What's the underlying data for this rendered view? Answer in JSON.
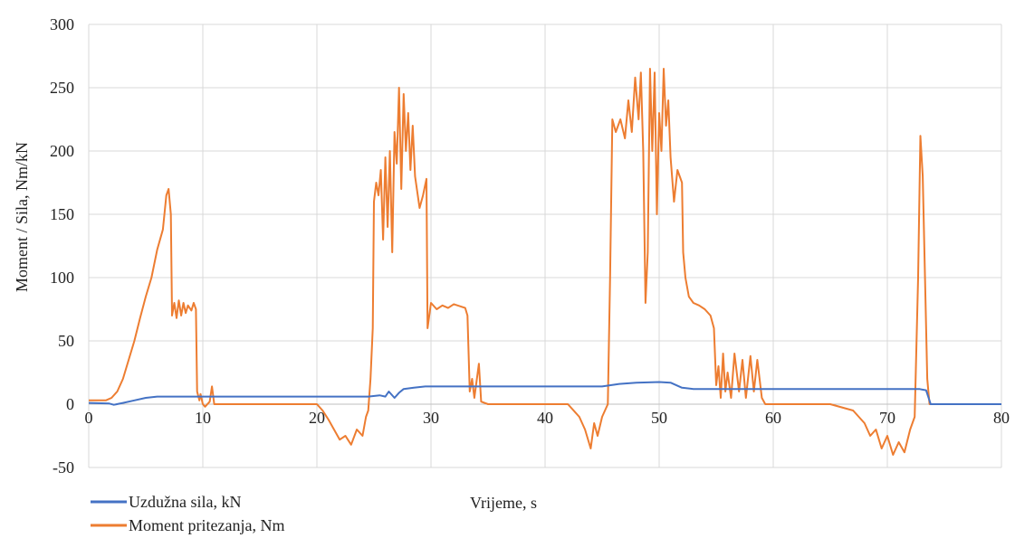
{
  "chart_data": {
    "type": "line",
    "xlabel": "Vrijeme, s",
    "ylabel": "Moment / Sila,  Nm/kN",
    "xlim": [
      0,
      80
    ],
    "ylim": [
      -50,
      300
    ],
    "x_ticks": [
      "0",
      "10",
      "20",
      "30",
      "40",
      "50",
      "60",
      "70",
      "80"
    ],
    "y_ticks": [
      "-50",
      "0",
      "50",
      "100",
      "150",
      "200",
      "250",
      "300"
    ],
    "grid": true,
    "legend_position": "bottom-left",
    "series": [
      {
        "name": "Uzdužna sila,  kN",
        "color": "#4472C4",
        "points": [
          [
            0,
            1
          ],
          [
            1.8,
            0.5
          ],
          [
            2.2,
            -0.5
          ],
          [
            3,
            1
          ],
          [
            4,
            3
          ],
          [
            5,
            5
          ],
          [
            6,
            6
          ],
          [
            8,
            6
          ],
          [
            10,
            6
          ],
          [
            15,
            6
          ],
          [
            20,
            6
          ],
          [
            24.5,
            6
          ],
          [
            25.5,
            7
          ],
          [
            26,
            6
          ],
          [
            26.3,
            10
          ],
          [
            26.8,
            5
          ],
          [
            27.2,
            9
          ],
          [
            27.6,
            12
          ],
          [
            28.5,
            13
          ],
          [
            29.5,
            14
          ],
          [
            31,
            14
          ],
          [
            35,
            14
          ],
          [
            40,
            14
          ],
          [
            45,
            14
          ],
          [
            46.5,
            16
          ],
          [
            48,
            17
          ],
          [
            50,
            17.5
          ],
          [
            51,
            17
          ],
          [
            52,
            13
          ],
          [
            53,
            12
          ],
          [
            55,
            12
          ],
          [
            60,
            12
          ],
          [
            65,
            12
          ],
          [
            70,
            12
          ],
          [
            72.8,
            12
          ],
          [
            73.4,
            11
          ],
          [
            73.8,
            0
          ],
          [
            80,
            0
          ]
        ]
      },
      {
        "name": "Moment pritezanja,  Nm",
        "color": "#ED7D31",
        "points": [
          [
            0,
            3
          ],
          [
            1.5,
            3
          ],
          [
            2,
            5
          ],
          [
            2.5,
            10
          ],
          [
            3,
            20
          ],
          [
            3.5,
            35
          ],
          [
            4,
            50
          ],
          [
            4.5,
            68
          ],
          [
            5,
            85
          ],
          [
            5.5,
            100
          ],
          [
            6,
            122
          ],
          [
            6.5,
            138
          ],
          [
            6.8,
            165
          ],
          [
            7,
            170
          ],
          [
            7.2,
            150
          ],
          [
            7.3,
            70
          ],
          [
            7.5,
            80
          ],
          [
            7.7,
            68
          ],
          [
            7.9,
            82
          ],
          [
            8.1,
            70
          ],
          [
            8.3,
            80
          ],
          [
            8.5,
            72
          ],
          [
            8.7,
            78
          ],
          [
            9,
            74
          ],
          [
            9.2,
            80
          ],
          [
            9.4,
            75
          ],
          [
            9.5,
            10
          ],
          [
            9.7,
            3
          ],
          [
            9.8,
            8
          ],
          [
            10,
            0
          ],
          [
            10.2,
            -2
          ],
          [
            10.6,
            2
          ],
          [
            10.8,
            14
          ],
          [
            11,
            0
          ],
          [
            15,
            0
          ],
          [
            20,
            0
          ],
          [
            20.5,
            -5
          ],
          [
            21,
            -12
          ],
          [
            21.5,
            -20
          ],
          [
            22,
            -28
          ],
          [
            22.5,
            -25
          ],
          [
            23,
            -32
          ],
          [
            23.5,
            -20
          ],
          [
            24,
            -25
          ],
          [
            24.3,
            -10
          ],
          [
            24.5,
            -5
          ],
          [
            24.7,
            20
          ],
          [
            24.9,
            60
          ],
          [
            25,
            160
          ],
          [
            25.2,
            175
          ],
          [
            25.4,
            165
          ],
          [
            25.6,
            185
          ],
          [
            25.8,
            130
          ],
          [
            26,
            195
          ],
          [
            26.2,
            140
          ],
          [
            26.4,
            200
          ],
          [
            26.6,
            120
          ],
          [
            26.8,
            215
          ],
          [
            27,
            190
          ],
          [
            27.2,
            250
          ],
          [
            27.4,
            170
          ],
          [
            27.6,
            245
          ],
          [
            27.8,
            200
          ],
          [
            28,
            230
          ],
          [
            28.2,
            185
          ],
          [
            28.4,
            220
          ],
          [
            28.6,
            180
          ],
          [
            29,
            155
          ],
          [
            29.3,
            165
          ],
          [
            29.6,
            178
          ],
          [
            29.7,
            60
          ],
          [
            30,
            80
          ],
          [
            30.5,
            75
          ],
          [
            31,
            78
          ],
          [
            31.5,
            76
          ],
          [
            32,
            79
          ],
          [
            33,
            76
          ],
          [
            33.2,
            70
          ],
          [
            33.4,
            10
          ],
          [
            33.6,
            20
          ],
          [
            33.8,
            5
          ],
          [
            34.2,
            32
          ],
          [
            34.4,
            2
          ],
          [
            35,
            0
          ],
          [
            40,
            0
          ],
          [
            42,
            0
          ],
          [
            43,
            -10
          ],
          [
            43.5,
            -20
          ],
          [
            44,
            -35
          ],
          [
            44.3,
            -15
          ],
          [
            44.6,
            -25
          ],
          [
            45,
            -10
          ],
          [
            45.5,
            0
          ],
          [
            45.7,
            100
          ],
          [
            45.9,
            225
          ],
          [
            46.2,
            215
          ],
          [
            46.6,
            225
          ],
          [
            47,
            210
          ],
          [
            47.3,
            240
          ],
          [
            47.6,
            215
          ],
          [
            47.9,
            258
          ],
          [
            48.2,
            225
          ],
          [
            48.4,
            262
          ],
          [
            48.6,
            200
          ],
          [
            48.8,
            80
          ],
          [
            49,
            120
          ],
          [
            49.2,
            265
          ],
          [
            49.4,
            200
          ],
          [
            49.6,
            262
          ],
          [
            49.8,
            150
          ],
          [
            50,
            230
          ],
          [
            50.2,
            200
          ],
          [
            50.4,
            265
          ],
          [
            50.6,
            220
          ],
          [
            50.8,
            240
          ],
          [
            51,
            195
          ],
          [
            51.3,
            160
          ],
          [
            51.6,
            185
          ],
          [
            52,
            175
          ],
          [
            52.1,
            120
          ],
          [
            52.3,
            100
          ],
          [
            52.6,
            85
          ],
          [
            53,
            80
          ],
          [
            53.5,
            78
          ],
          [
            54,
            75
          ],
          [
            54.5,
            70
          ],
          [
            54.8,
            60
          ],
          [
            55,
            15
          ],
          [
            55.2,
            30
          ],
          [
            55.4,
            5
          ],
          [
            55.6,
            40
          ],
          [
            55.8,
            10
          ],
          [
            56,
            25
          ],
          [
            56.3,
            5
          ],
          [
            56.6,
            40
          ],
          [
            57,
            10
          ],
          [
            57.3,
            35
          ],
          [
            57.6,
            5
          ],
          [
            58,
            38
          ],
          [
            58.3,
            10
          ],
          [
            58.6,
            35
          ],
          [
            59,
            5
          ],
          [
            59.3,
            0
          ],
          [
            60,
            0
          ],
          [
            65,
            0
          ],
          [
            67,
            -5
          ],
          [
            68,
            -15
          ],
          [
            68.5,
            -25
          ],
          [
            69,
            -20
          ],
          [
            69.5,
            -35
          ],
          [
            70,
            -25
          ],
          [
            70.5,
            -40
          ],
          [
            71,
            -30
          ],
          [
            71.5,
            -38
          ],
          [
            72,
            -20
          ],
          [
            72.4,
            -10
          ],
          [
            72.7,
            100
          ],
          [
            72.9,
            212
          ],
          [
            73.1,
            180
          ],
          [
            73.3,
            100
          ],
          [
            73.5,
            20
          ],
          [
            73.7,
            0
          ],
          [
            80,
            0
          ]
        ]
      }
    ]
  }
}
